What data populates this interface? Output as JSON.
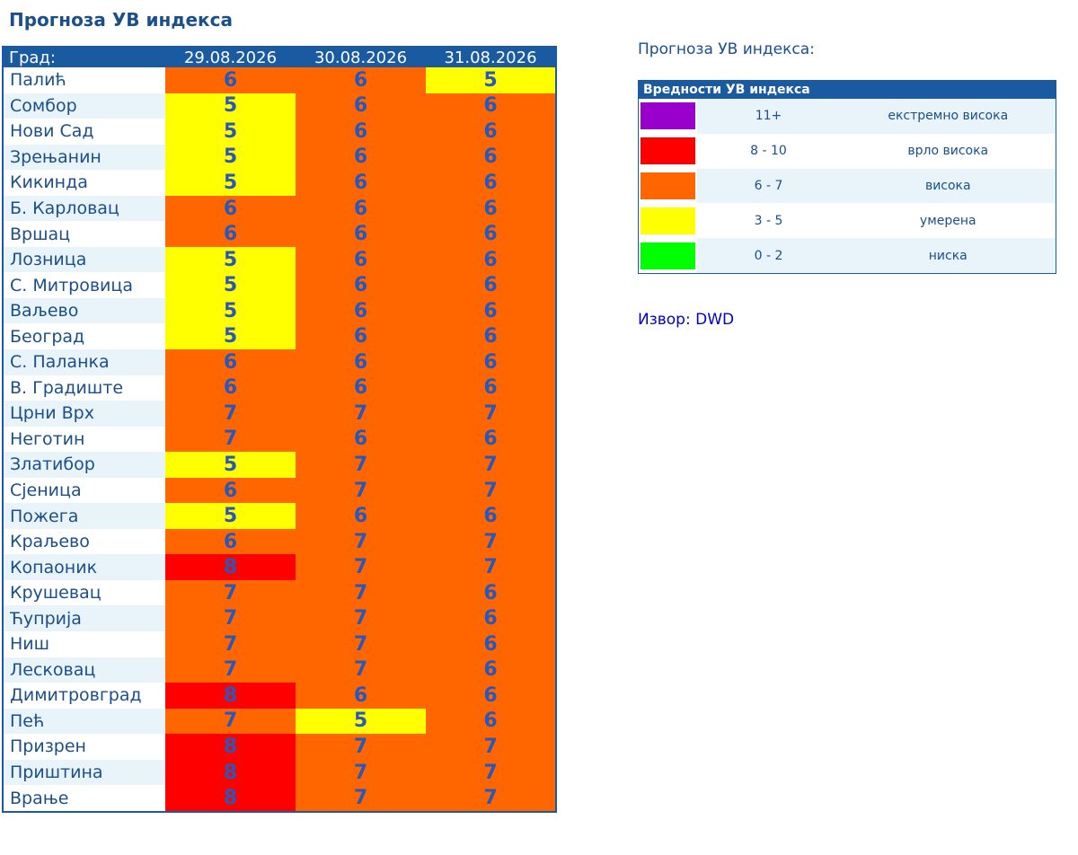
{
  "title": "Прогноза УВ индекса",
  "table": {
    "city_header": "Град:",
    "dates": [
      "29.08.2026",
      "30.08.2026",
      "31.08.2026"
    ],
    "rows": [
      {
        "city": "Палић",
        "values": [
          "6",
          "6",
          "5"
        ],
        "levels": [
          "orange",
          "orange",
          "yellow"
        ]
      },
      {
        "city": "Сомбор",
        "values": [
          "5",
          "6",
          "6"
        ],
        "levels": [
          "yellow",
          "orange",
          "orange"
        ]
      },
      {
        "city": "Нови Сад",
        "values": [
          "5",
          "6",
          "6"
        ],
        "levels": [
          "yellow",
          "orange",
          "orange"
        ]
      },
      {
        "city": "Зрењанин",
        "values": [
          "5",
          "6",
          "6"
        ],
        "levels": [
          "yellow",
          "orange",
          "orange"
        ]
      },
      {
        "city": "Кикинда",
        "values": [
          "5",
          "6",
          "6"
        ],
        "levels": [
          "yellow",
          "orange",
          "orange"
        ]
      },
      {
        "city": "Б. Карловац",
        "values": [
          "6",
          "6",
          "6"
        ],
        "levels": [
          "orange",
          "orange",
          "orange"
        ]
      },
      {
        "city": "Вршац",
        "values": [
          "6",
          "6",
          "6"
        ],
        "levels": [
          "orange",
          "orange",
          "orange"
        ]
      },
      {
        "city": "Лозница",
        "values": [
          "5",
          "6",
          "6"
        ],
        "levels": [
          "yellow",
          "orange",
          "orange"
        ]
      },
      {
        "city": "С. Митровица",
        "values": [
          "5",
          "6",
          "6"
        ],
        "levels": [
          "yellow",
          "orange",
          "orange"
        ]
      },
      {
        "city": "Ваљево",
        "values": [
          "5",
          "6",
          "6"
        ],
        "levels": [
          "yellow",
          "orange",
          "orange"
        ]
      },
      {
        "city": "Београд",
        "values": [
          "5",
          "6",
          "6"
        ],
        "levels": [
          "yellow",
          "orange",
          "orange"
        ]
      },
      {
        "city": "С. Паланка",
        "values": [
          "6",
          "6",
          "6"
        ],
        "levels": [
          "orange",
          "orange",
          "orange"
        ]
      },
      {
        "city": "В. Градиште",
        "values": [
          "6",
          "6",
          "6"
        ],
        "levels": [
          "orange",
          "orange",
          "orange"
        ]
      },
      {
        "city": "Црни Врх",
        "values": [
          "7",
          "7",
          "7"
        ],
        "levels": [
          "orange",
          "orange",
          "orange"
        ]
      },
      {
        "city": "Неготин",
        "values": [
          "7",
          "6",
          "6"
        ],
        "levels": [
          "orange",
          "orange",
          "orange"
        ]
      },
      {
        "city": "Златибор",
        "values": [
          "5",
          "7",
          "7"
        ],
        "levels": [
          "yellow",
          "orange",
          "orange"
        ]
      },
      {
        "city": "Сјеница",
        "values": [
          "6",
          "7",
          "7"
        ],
        "levels": [
          "orange",
          "orange",
          "orange"
        ]
      },
      {
        "city": "Пожега",
        "values": [
          "5",
          "6",
          "6"
        ],
        "levels": [
          "yellow",
          "orange",
          "orange"
        ]
      },
      {
        "city": "Краљево",
        "values": [
          "6",
          "7",
          "7"
        ],
        "levels": [
          "orange",
          "orange",
          "orange"
        ]
      },
      {
        "city": "Копаоник",
        "values": [
          "8",
          "7",
          "7"
        ],
        "levels": [
          "red",
          "orange",
          "orange"
        ]
      },
      {
        "city": "Крушевац",
        "values": [
          "7",
          "7",
          "6"
        ],
        "levels": [
          "orange",
          "orange",
          "orange"
        ]
      },
      {
        "city": "Ћуприја",
        "values": [
          "7",
          "7",
          "6"
        ],
        "levels": [
          "orange",
          "orange",
          "orange"
        ]
      },
      {
        "city": "Ниш",
        "values": [
          "7",
          "7",
          "6"
        ],
        "levels": [
          "orange",
          "orange",
          "orange"
        ]
      },
      {
        "city": "Лесковац",
        "values": [
          "7",
          "7",
          "6"
        ],
        "levels": [
          "orange",
          "orange",
          "orange"
        ]
      },
      {
        "city": "Димитровград",
        "values": [
          "8",
          "6",
          "6"
        ],
        "levels": [
          "red",
          "orange",
          "orange"
        ]
      },
      {
        "city": "Пећ",
        "values": [
          "7",
          "5",
          "6"
        ],
        "levels": [
          "orange",
          "yellow",
          "orange"
        ]
      },
      {
        "city": "Призрен",
        "values": [
          "8",
          "7",
          "7"
        ],
        "levels": [
          "red",
          "orange",
          "orange"
        ]
      },
      {
        "city": "Приштина",
        "values": [
          "8",
          "7",
          "7"
        ],
        "levels": [
          "red",
          "orange",
          "orange"
        ]
      },
      {
        "city": "Врање",
        "values": [
          "8",
          "7",
          "7"
        ],
        "levels": [
          "red",
          "orange",
          "orange"
        ]
      }
    ]
  },
  "legend": {
    "heading": "Прогноза УВ индекса:",
    "table_title": "Вредности УВ индекса",
    "rows": [
      {
        "range": "11+",
        "label": "екстремно висока",
        "color": "#9900cc"
      },
      {
        "range": "8 - 10",
        "label": "врло висока",
        "color": "#ff0000"
      },
      {
        "range": "6 - 7",
        "label": "висока",
        "color": "#ff6600"
      },
      {
        "range": "3 - 5",
        "label": "умерена",
        "color": "#ffff00"
      },
      {
        "range": "0 - 2",
        "label": "ниска",
        "color": "#00ff00"
      }
    ]
  },
  "source": "Извор: DWD",
  "colors": {
    "orange": "#ff6600",
    "yellow": "#ffff00",
    "red": "#ff0000",
    "header_blue": "#1a5aa0",
    "text_blue": "#2a58b8"
  }
}
